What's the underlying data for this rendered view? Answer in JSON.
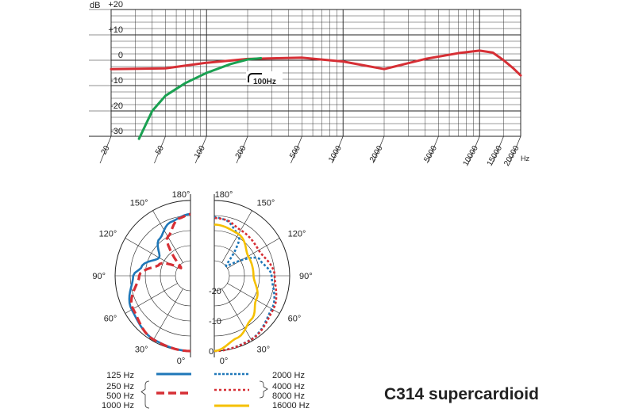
{
  "chart_data": [
    {
      "type": "line",
      "title": "",
      "xlabel": "Hz",
      "ylabel": "dB",
      "x_scale": "log",
      "xlim": [
        20,
        20000
      ],
      "ylim": [
        -30,
        20
      ],
      "x_ticks": [
        "20",
        "50",
        "100",
        "200",
        "500",
        "1000",
        "2000",
        "5000",
        "10000",
        "15000",
        "20000"
      ],
      "y_ticks": [
        "+20",
        "+10",
        "0",
        "-10",
        "-20",
        "-30"
      ],
      "grid": true,
      "annotation": "100Hz",
      "series": [
        {
          "name": "",
          "color": "#d62f35",
          "x": [
            20,
            50,
            100,
            200,
            500,
            1000,
            2000,
            4000,
            7000,
            10000,
            12500,
            15000,
            17500,
            20000
          ],
          "y": [
            -3.5,
            -3.2,
            -1,
            0.5,
            1,
            -0.5,
            -3.5,
            0.5,
            2.8,
            3.8,
            3,
            0,
            -3,
            -6
          ]
        },
        {
          "name": "",
          "color": "#1aa152",
          "x": [
            32,
            40,
            50,
            70,
            100,
            150,
            200,
            250
          ],
          "y": [
            -31,
            -20,
            -14,
            -9,
            -5,
            -1.5,
            0.3,
            0.8
          ]
        }
      ]
    },
    {
      "type": "polar",
      "title": "C314 supercardioid",
      "angle_labels": [
        "0°",
        "30°",
        "60°",
        "90°",
        "120°",
        "150°",
        "180°"
      ],
      "radial_labels": [
        "0",
        "-10",
        "-20"
      ],
      "radial_range": [
        -25,
        0
      ],
      "legend": {
        "left_labels": [
          "125 Hz",
          "250 Hz",
          "500 Hz",
          "1000 Hz"
        ],
        "right_labels": [
          "2000 Hz",
          "4000 Hz",
          "8000 Hz",
          "16000 Hz"
        ]
      },
      "left_series": [
        {
          "name": "125 Hz",
          "color": "#1f77b8",
          "style": "solid",
          "angles": [
            0,
            30,
            60,
            90,
            100,
            120,
            140,
            160,
            180
          ],
          "db": [
            0,
            -0.6,
            -2.5,
            -6,
            -8.5,
            -13,
            -9,
            -6,
            -4.5
          ]
        },
        {
          "name": "250 Hz / 500 Hz / 1000 Hz",
          "color": "#d62f35",
          "style": "dashed",
          "angles": [
            0,
            30,
            60,
            90,
            110,
            130,
            150,
            170,
            180
          ],
          "db": [
            0,
            -0.5,
            -3,
            -8,
            -14,
            -21,
            -10,
            -5.5,
            -4.5
          ]
        }
      ],
      "right_series": [
        {
          "name": "2000 Hz",
          "color": "#1f77b8",
          "style": "dotted",
          "angles": [
            0,
            30,
            60,
            90,
            110,
            130,
            150,
            170,
            180
          ],
          "db": [
            0,
            -0.6,
            -3,
            -6,
            -9,
            -20,
            -9,
            -6,
            -5.5
          ]
        },
        {
          "name": "4000 Hz / 8000 Hz",
          "color": "#d62f35",
          "style": "dotted",
          "angles": [
            0,
            30,
            60,
            90,
            120,
            150,
            170,
            180
          ],
          "db": [
            0,
            -0.5,
            -2.5,
            -5,
            -8,
            -7.5,
            -6,
            -5.8
          ]
        },
        {
          "name": "16000 Hz",
          "color": "#f5c000",
          "style": "solid",
          "angles": [
            0,
            20,
            40,
            60,
            90,
            120,
            150,
            180
          ],
          "db": [
            0,
            -3,
            -6,
            -9,
            -12,
            -12,
            -9,
            -8
          ]
        }
      ]
    }
  ]
}
